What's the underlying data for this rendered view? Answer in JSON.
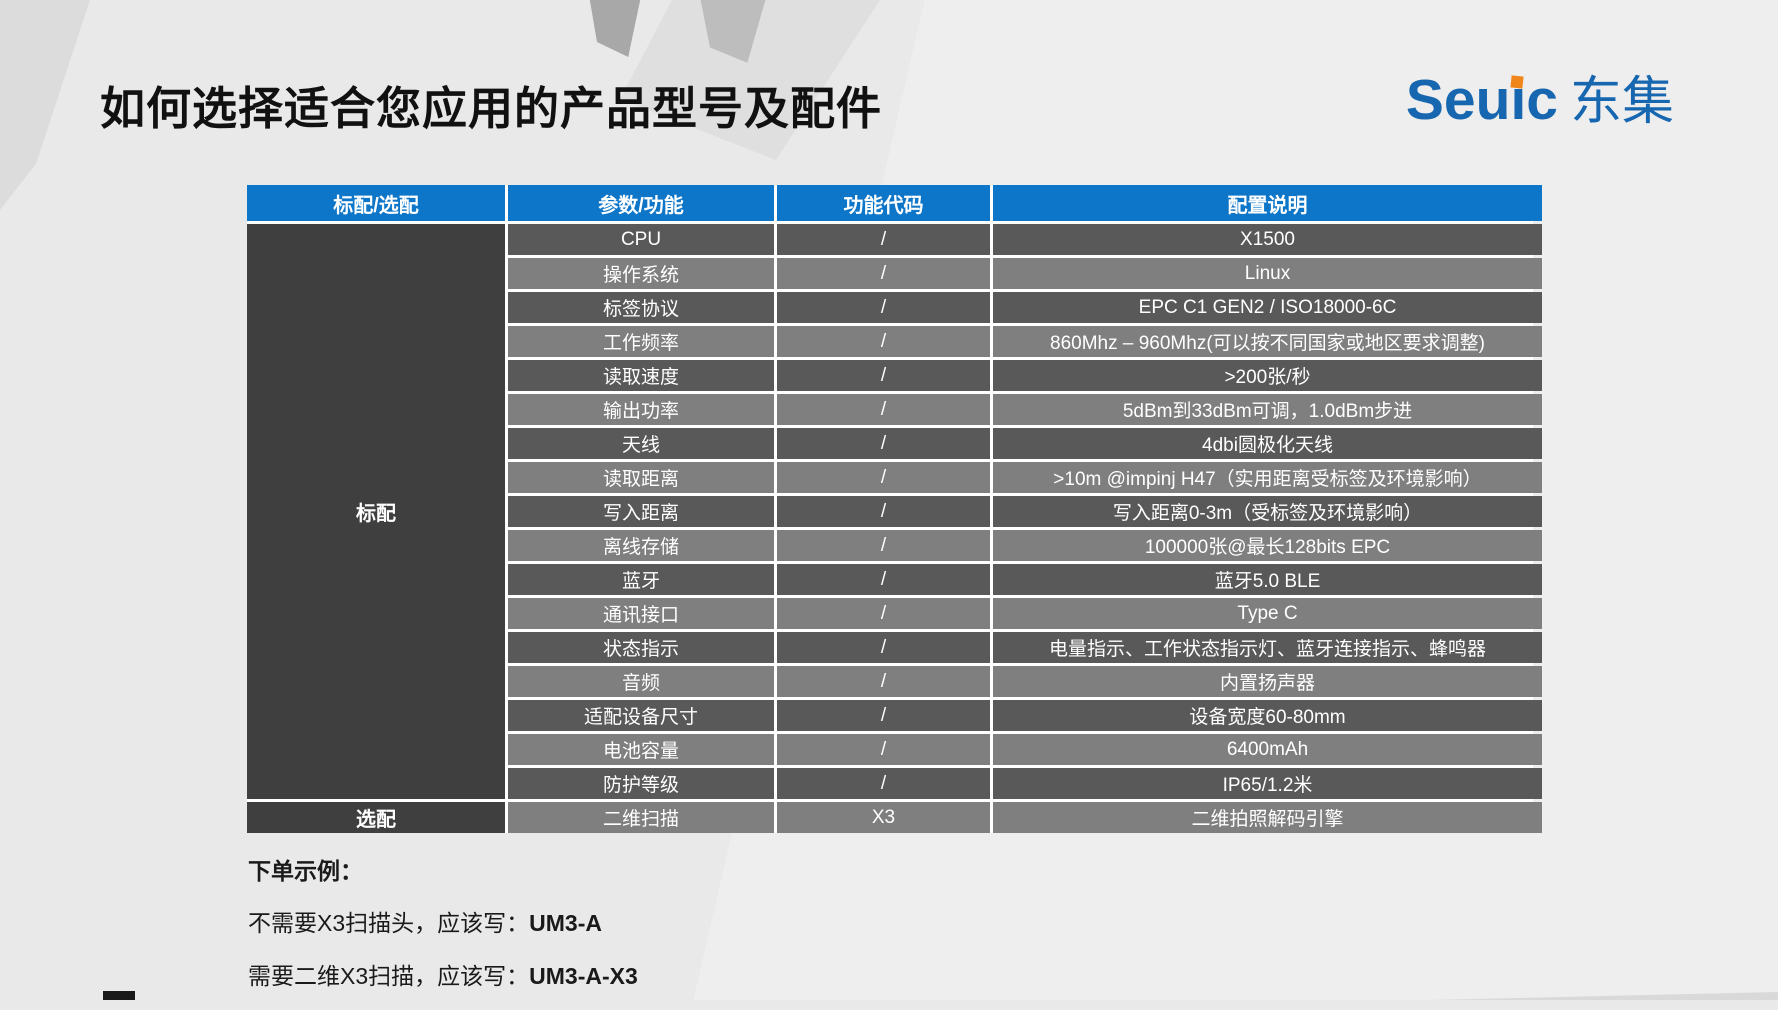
{
  "slide": {
    "title": "如何选择适合您应用的产品型号及配件"
  },
  "logo": {
    "latin_prefix": "Seu",
    "latin_i": "i",
    "latin_suffix": "c",
    "cjk": "东集"
  },
  "table": {
    "headers": [
      "标配/选配",
      "参数/功能",
      "功能代码",
      "配置说明"
    ],
    "standard_group_label": "标配",
    "optional_group_label": "选配",
    "rows": [
      {
        "param": "CPU",
        "code": "/",
        "desc": "X1500"
      },
      {
        "param": "操作系统",
        "code": "/",
        "desc": "Linux"
      },
      {
        "param": "标签协议",
        "code": "/",
        "desc": "EPC C1 GEN2 / ISO18000-6C"
      },
      {
        "param": "工作频率",
        "code": "/",
        "desc": "860Mhz – 960Mhz(可以按不同国家或地区要求调整)"
      },
      {
        "param": "读取速度",
        "code": "/",
        "desc": ">200张/秒"
      },
      {
        "param": "输出功率",
        "code": "/",
        "desc": "5dBm到33dBm可调，1.0dBm步进"
      },
      {
        "param": "天线",
        "code": "/",
        "desc": "4dbi圆极化天线"
      },
      {
        "param": "读取距离",
        "code": "/",
        "desc": ">10m @impinj H47（实用距离受标签及环境影响）"
      },
      {
        "param": "写入距离",
        "code": "/",
        "desc": "写入距离0-3m（受标签及环境影响）"
      },
      {
        "param": "离线存储",
        "code": "/",
        "desc": "100000张@最长128bits EPC"
      },
      {
        "param": "蓝牙",
        "code": "/",
        "desc": "蓝牙5.0 BLE"
      },
      {
        "param": "通讯接口",
        "code": "/",
        "desc": "Type C"
      },
      {
        "param": "状态指示",
        "code": "/",
        "desc": "电量指示、工作状态指示灯、蓝牙连接指示、蜂鸣器"
      },
      {
        "param": "音频",
        "code": "/",
        "desc": "内置扬声器"
      },
      {
        "param": "适配设备尺寸",
        "code": "/",
        "desc": "设备宽度60-80mm"
      },
      {
        "param": "电池容量",
        "code": "/",
        "desc": "6400mAh"
      },
      {
        "param": "防护等级",
        "code": "/",
        "desc": "IP65/1.2米"
      }
    ],
    "optional_row": {
      "param": "二维扫描",
      "code": "X3",
      "desc": "二维拍照解码引擎"
    }
  },
  "notes": {
    "heading": "下单示例：",
    "lines": [
      {
        "label": "不需要X3扫描头，应该写：",
        "code": "UM3-A"
      },
      {
        "label": "需要二维X3扫描，应该写：",
        "code": "UM3-A-X3"
      }
    ]
  },
  "colors": {
    "header_blue": "#0e76c8",
    "group_cell": "#3f3f3f",
    "row_dark": "#595959",
    "row_light": "#7f7f7f",
    "logo_blue": "#1666b0",
    "logo_orange": "#f08519",
    "title_black": "#111111"
  }
}
